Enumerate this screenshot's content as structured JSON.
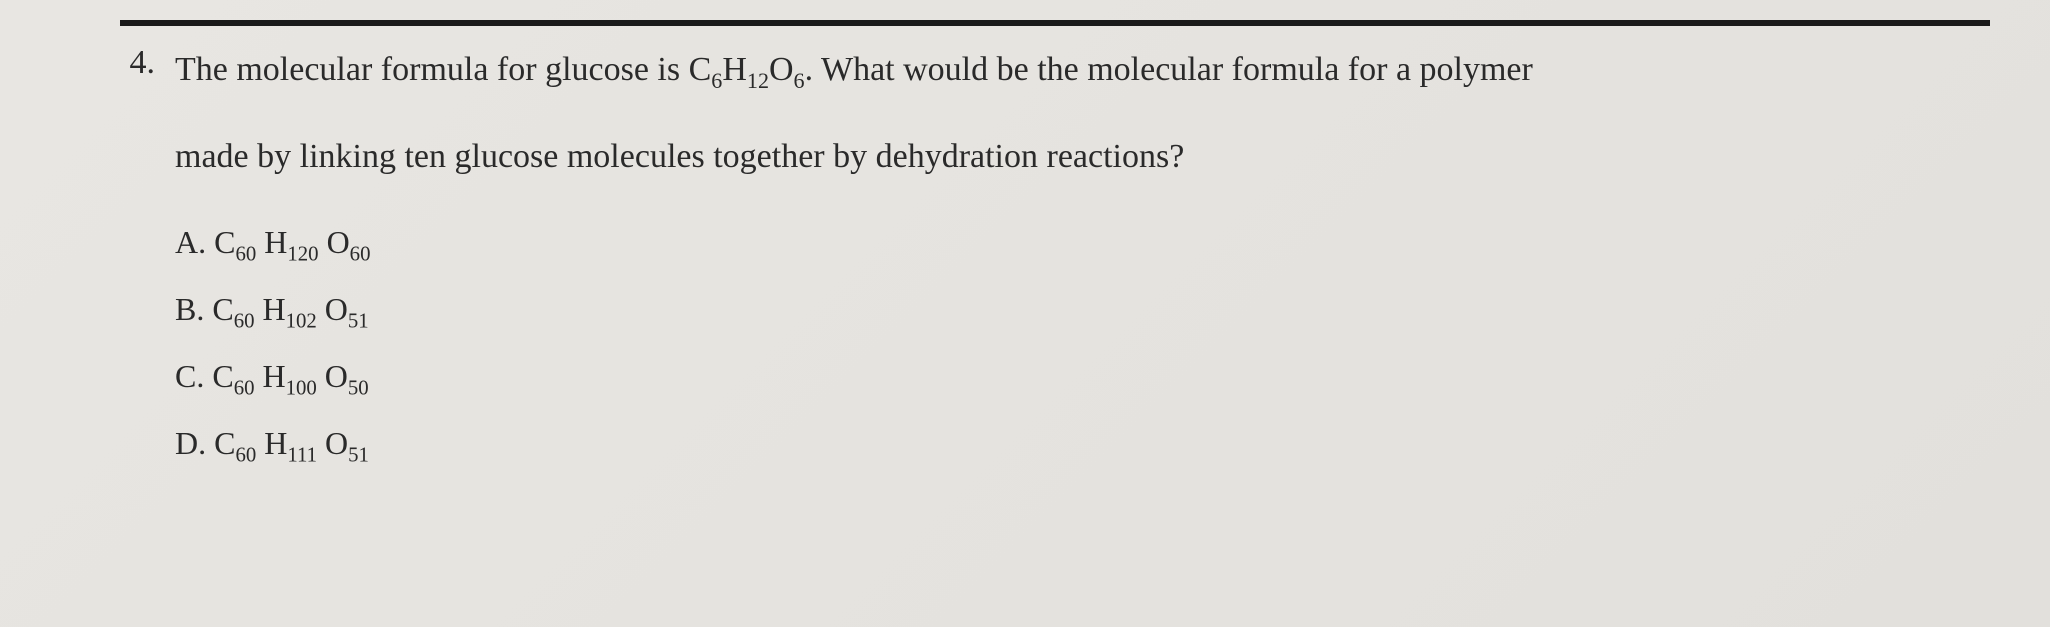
{
  "rule_color": "#1a1a1a",
  "background_color": "#e5e3df",
  "text_color": "#2a2a2a",
  "font_family": "Georgia, 'Times New Roman', serif",
  "question": {
    "number": "4.",
    "line1_prefix": "The molecular formula for glucose is C",
    "glucose_C_sub": "6",
    "glucose_H": "H",
    "glucose_H_sub": "12",
    "glucose_O": "O",
    "glucose_O_sub": "6",
    "line1_suffix": ". What would be the molecular formula for a polymer",
    "line2": "made by linking ten glucose molecules together by dehydration reactions?"
  },
  "options": [
    {
      "letter": "A.",
      "C": "C",
      "C_sub": "60",
      "H": " H",
      "H_sub": "120",
      "O": " O",
      "O_sub": "60"
    },
    {
      "letter": "B.",
      "C": "C",
      "C_sub": "60",
      "H": " H",
      "H_sub": "102",
      "O": " O",
      "O_sub": "51"
    },
    {
      "letter": "C.",
      "C": "C",
      "C_sub": "60",
      "H": " H",
      "H_sub": "100",
      "O": " O",
      "O_sub": "50"
    },
    {
      "letter": "D.",
      "C": "C",
      "C_sub": "60",
      "H": " H",
      "H_sub": "111",
      "O": " O",
      "O_sub": "51"
    }
  ]
}
